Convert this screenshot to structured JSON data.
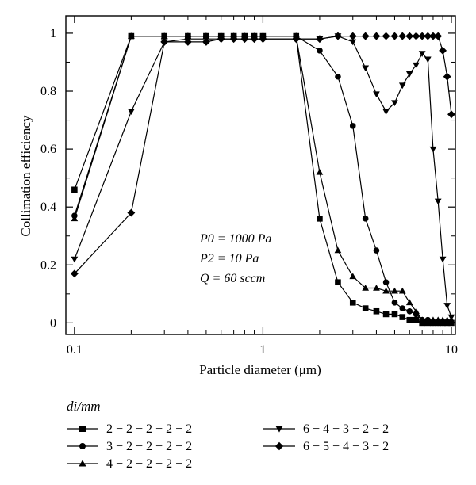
{
  "chart_data": {
    "type": "line",
    "title": "",
    "xlabel": "Particle diameter (μm)",
    "ylabel": "Collimation efficiency",
    "xscale": "log",
    "xlim": [
      0.09,
      10.5
    ],
    "ylim": [
      -0.04,
      1.06
    ],
    "x_ticks": [
      {
        "value": 0.1,
        "label": "0.1"
      },
      {
        "value": 1,
        "label": "1"
      },
      {
        "value": 10,
        "label": "10"
      }
    ],
    "y_ticks": [
      {
        "value": 0,
        "label": "0"
      },
      {
        "value": 0.2,
        "label": "0.2"
      },
      {
        "value": 0.4,
        "label": "0.4"
      },
      {
        "value": 0.6,
        "label": "0.6"
      },
      {
        "value": 0.8,
        "label": "0.8"
      },
      {
        "value": 1,
        "label": "1"
      }
    ],
    "grid": false,
    "annotation": [
      "P0 = 1000 Pa",
      "P2 = 10 Pa",
      "Q = 60 sccm"
    ],
    "legend": {
      "placement": "below",
      "title": "di/mm",
      "series_order": [
        0,
        1,
        2,
        3,
        4
      ]
    },
    "series": [
      {
        "name": "2 − 2 − 2 − 2 − 2",
        "marker": "square",
        "x": [
          0.1,
          0.2,
          0.3,
          0.4,
          0.5,
          0.6,
          0.7,
          0.8,
          0.9,
          1.0,
          1.5,
          2.0,
          2.5,
          3.0,
          3.5,
          4.0,
          4.5,
          5.0,
          5.5,
          6.0,
          6.5,
          7.0,
          7.5,
          8.0,
          8.5,
          9.0,
          9.5,
          10.0
        ],
        "y": [
          0.46,
          0.99,
          0.99,
          0.99,
          0.99,
          0.99,
          0.99,
          0.99,
          0.99,
          0.99,
          0.99,
          0.36,
          0.14,
          0.07,
          0.05,
          0.04,
          0.03,
          0.03,
          0.02,
          0.01,
          0.01,
          0.0,
          0.0,
          0.0,
          0.0,
          0.0,
          0.0,
          0.0
        ]
      },
      {
        "name": "3 − 2 − 2 − 2 − 2",
        "marker": "circle",
        "x": [
          0.1,
          0.2,
          0.3,
          0.4,
          0.5,
          0.6,
          0.7,
          0.8,
          0.9,
          1.0,
          1.5,
          2.0,
          2.5,
          3.0,
          3.5,
          4.0,
          4.5,
          5.0,
          5.5,
          6.0,
          6.5,
          7.0,
          7.5,
          8.0,
          8.5,
          9.0,
          9.5,
          10.0
        ],
        "y": [
          0.37,
          0.99,
          0.99,
          0.99,
          0.99,
          0.99,
          0.99,
          0.99,
          0.99,
          0.99,
          0.99,
          0.94,
          0.85,
          0.68,
          0.36,
          0.25,
          0.14,
          0.07,
          0.05,
          0.04,
          0.03,
          0.01,
          0.01,
          0.0,
          0.0,
          0.0,
          0.0,
          0.0
        ]
      },
      {
        "name": "4 − 2 − 2 − 2 − 2",
        "marker": "triangle-up",
        "x": [
          0.1,
          0.2,
          0.3,
          0.4,
          0.5,
          0.6,
          0.7,
          0.8,
          0.9,
          1.0,
          1.5,
          2.0,
          2.5,
          3.0,
          3.5,
          4.0,
          4.5,
          5.0,
          5.5,
          6.0,
          6.5,
          7.0,
          7.5,
          8.0,
          8.5,
          9.0,
          9.5,
          10.0
        ],
        "y": [
          0.36,
          0.99,
          0.99,
          0.99,
          0.99,
          0.99,
          0.99,
          0.99,
          0.99,
          0.99,
          0.99,
          0.52,
          0.25,
          0.16,
          0.12,
          0.12,
          0.11,
          0.11,
          0.11,
          0.07,
          0.04,
          0.01,
          0.01,
          0.01,
          0.01,
          0.01,
          0.01,
          0.01
        ]
      },
      {
        "name": "6 − 4 − 3 − 2 − 2",
        "marker": "triangle-down",
        "x": [
          0.1,
          0.2,
          0.3,
          0.4,
          0.5,
          0.6,
          0.7,
          0.8,
          0.9,
          1.0,
          1.5,
          2.0,
          2.5,
          3.0,
          3.5,
          4.0,
          4.5,
          5.0,
          5.5,
          6.0,
          6.5,
          7.0,
          7.5,
          8.0,
          8.5,
          9.0,
          9.5,
          10.0
        ],
        "y": [
          0.22,
          0.73,
          0.97,
          0.98,
          0.98,
          0.98,
          0.98,
          0.98,
          0.98,
          0.98,
          0.98,
          0.98,
          0.99,
          0.97,
          0.88,
          0.79,
          0.73,
          0.76,
          0.82,
          0.86,
          0.89,
          0.93,
          0.91,
          0.6,
          0.42,
          0.22,
          0.06,
          0.02
        ]
      },
      {
        "name": "6 − 5 − 4 − 3 − 2",
        "marker": "diamond",
        "x": [
          0.1,
          0.2,
          0.3,
          0.4,
          0.5,
          0.6,
          0.7,
          0.8,
          0.9,
          1.0,
          1.5,
          2.0,
          2.5,
          3.0,
          3.5,
          4.0,
          4.5,
          5.0,
          5.5,
          6.0,
          6.5,
          7.0,
          7.5,
          8.0,
          8.5,
          9.0,
          9.5,
          10.0
        ],
        "y": [
          0.17,
          0.38,
          0.97,
          0.97,
          0.97,
          0.98,
          0.98,
          0.98,
          0.98,
          0.98,
          0.98,
          0.98,
          0.99,
          0.99,
          0.99,
          0.99,
          0.99,
          0.99,
          0.99,
          0.99,
          0.99,
          0.99,
          0.99,
          0.99,
          0.99,
          0.94,
          0.85,
          0.72
        ]
      }
    ]
  }
}
